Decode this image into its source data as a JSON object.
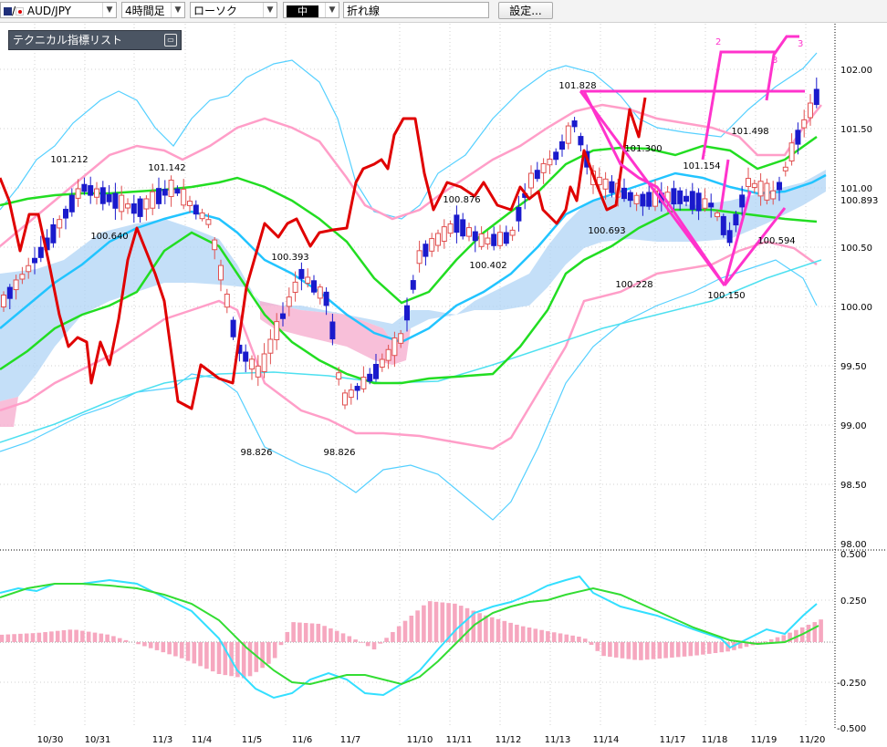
{
  "toolbar": {
    "symbol": "AUD/JPY",
    "timeframe": "4時間足",
    "chart_style": "ローソク",
    "line_width_symbol": "中",
    "line_type": "折れ線",
    "settings_label": "設定..."
  },
  "indicator_panel": {
    "title": "テクニカル指標リスト"
  },
  "colors": {
    "bull_candle": "#e05050",
    "bear_candle": "#1a1acc",
    "price_line": "#e00000",
    "bollinger_mid": "#00c8ff",
    "bollinger_outer": "#ff9ec8",
    "ichimoku_cloud_up": "#b0d4f5",
    "ichimoku_cloud_down": "#f7b4d2",
    "green_ma": "#22dd22",
    "trendline": "#ff33cc",
    "macd_line": "#33dfff",
    "signal_line": "#33dd33",
    "histogram": "#f6a7bf"
  },
  "chart_data": {
    "type": "candlestick",
    "price_axis_ticks": [
      "102.00",
      "101.50",
      "101.00",
      "100.50",
      "100.00",
      "99.50",
      "99.00",
      "98.50",
      "98.00"
    ],
    "current_price_label": "100.893",
    "x_labels": [
      "10/30",
      "10/31",
      "11/3",
      "11/4",
      "11/5",
      "11/6",
      "11/7",
      "11/10",
      "11/11",
      "11/12",
      "11/13",
      "11/14",
      "11/17",
      "11/18",
      "11/19",
      "11/20"
    ],
    "annotations": [
      "101.212",
      "101.142",
      "100.640",
      "100.393",
      "98.826",
      "98.826",
      "100.876",
      "100.402",
      "101.828",
      "100.693",
      "101.300",
      "100.228",
      "101.154",
      "100.150",
      "101.498",
      "100.594"
    ],
    "wave_labels": [
      "2",
      "3",
      "3"
    ],
    "osc_axis_ticks": [
      "0.500",
      "0.250",
      "-0.250",
      "-0.500"
    ]
  }
}
